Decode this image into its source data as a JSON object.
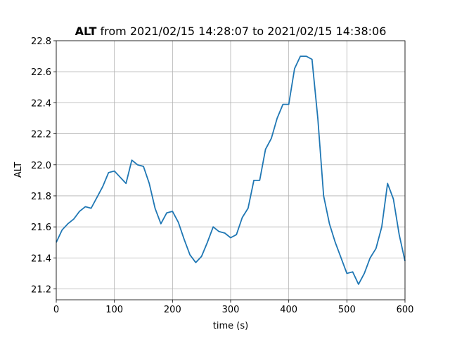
{
  "chart_data": {
    "type": "line",
    "title": {
      "name": "ALT",
      "rest": "from 2021/02/15 14:28:07 to 2021/02/15 14:38:06"
    },
    "xlabel": "time (s)",
    "ylabel": "ALT",
    "x": [
      0,
      10,
      20,
      30,
      40,
      50,
      60,
      70,
      80,
      90,
      100,
      110,
      120,
      130,
      140,
      150,
      160,
      170,
      180,
      190,
      200,
      210,
      220,
      230,
      240,
      250,
      260,
      270,
      280,
      290,
      300,
      310,
      320,
      330,
      340,
      350,
      360,
      370,
      380,
      390,
      400,
      410,
      420,
      430,
      440,
      450,
      460,
      470,
      480,
      490,
      500,
      510,
      520,
      530,
      540,
      550,
      560,
      570,
      580,
      590,
      600
    ],
    "series": [
      {
        "name": "ALT",
        "color": "#1f77b4",
        "values": [
          21.5,
          21.58,
          21.62,
          21.65,
          21.7,
          21.73,
          21.72,
          21.79,
          21.86,
          21.95,
          21.96,
          21.92,
          21.88,
          22.03,
          22.0,
          21.99,
          21.88,
          21.72,
          21.62,
          21.69,
          21.7,
          21.63,
          21.52,
          21.42,
          21.37,
          21.41,
          21.5,
          21.6,
          21.57,
          21.56,
          21.53,
          21.55,
          21.66,
          21.72,
          21.9,
          21.9,
          22.1,
          22.17,
          22.3,
          22.39,
          22.39,
          22.62,
          22.7,
          22.7,
          22.68,
          22.3,
          21.8,
          21.62,
          21.5,
          21.4,
          21.3,
          21.31,
          21.23,
          21.3,
          21.4,
          21.46,
          21.6,
          21.88,
          21.78,
          21.55,
          21.38
        ]
      }
    ],
    "xlim": [
      0,
      600
    ],
    "xticks": [
      0,
      100,
      200,
      300,
      400,
      500,
      600
    ],
    "ylim": [
      21.13,
      22.8
    ],
    "yticks": [
      21.2,
      21.4,
      21.6,
      21.8,
      {
        "value": 22,
        "label": "22.0"
      },
      22.2,
      22.4,
      22.6,
      22.8
    ],
    "grid": true
  }
}
